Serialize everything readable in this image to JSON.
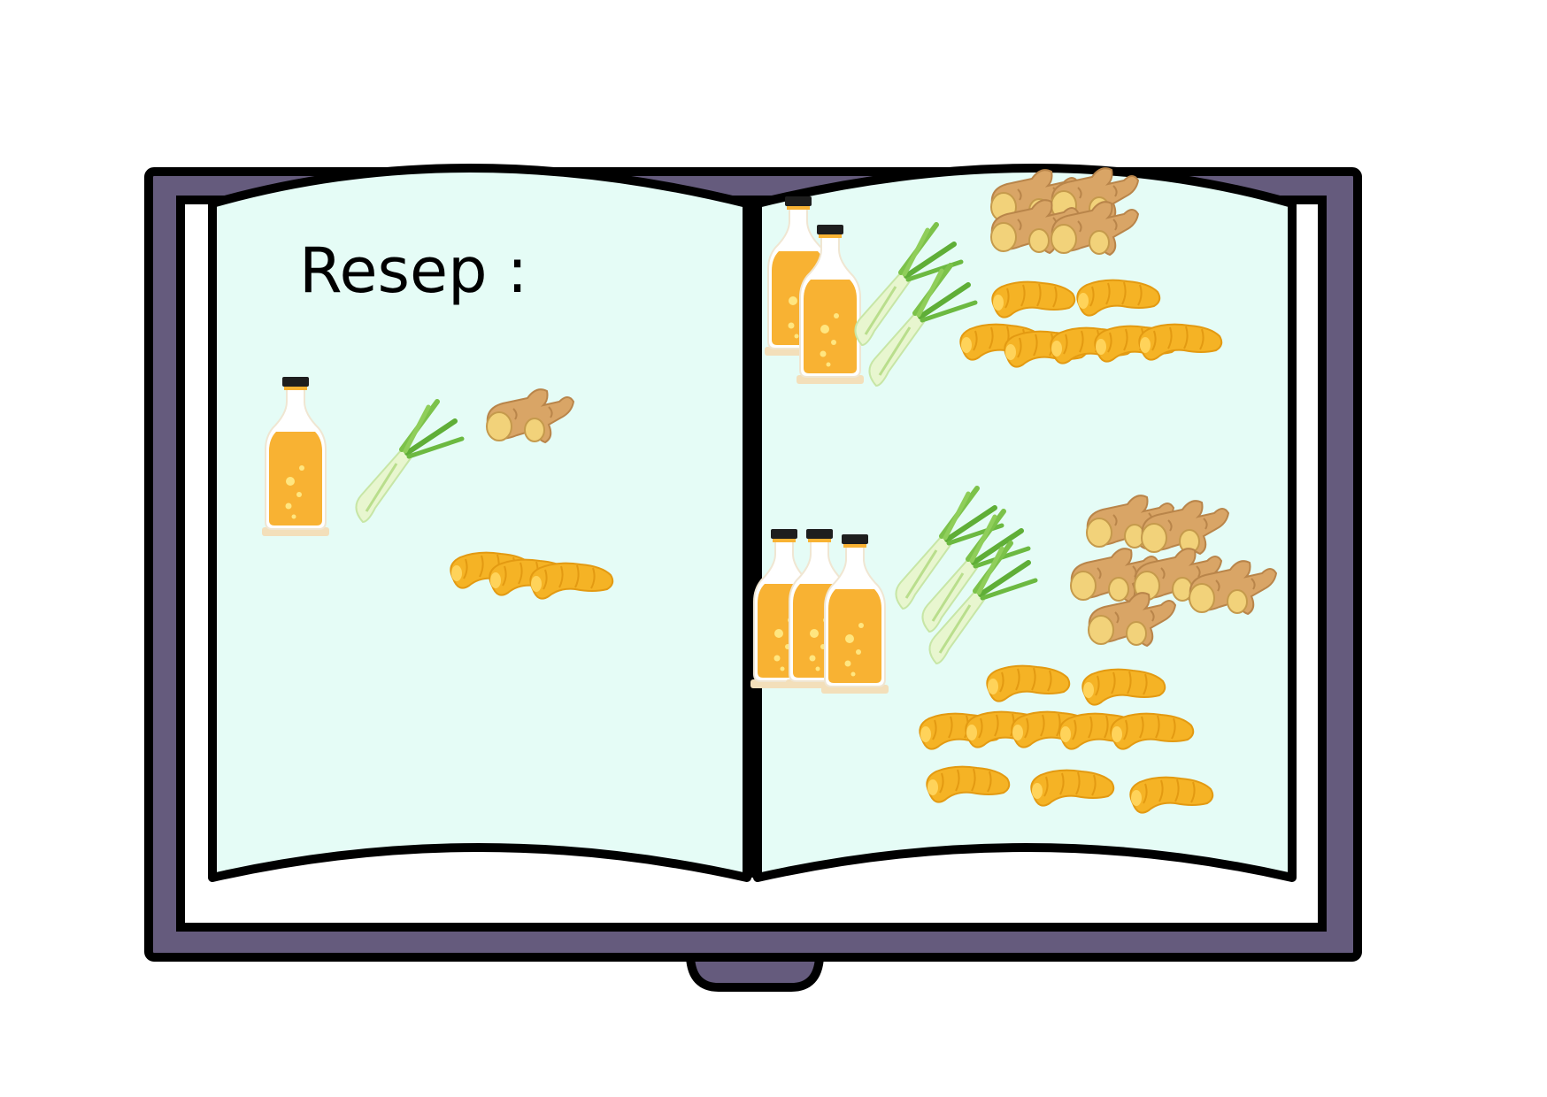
{
  "page": {
    "title": "Resep :"
  },
  "colors": {
    "cover": "#655b7d",
    "page_paper": "#e5fcf6",
    "outline": "#000000",
    "bottle_liquid": "#f8b233",
    "bottle_cap": "#1e1e1e",
    "lemongrass": "#7cc24a",
    "ginger": "#d9a566",
    "turmeric": "#f5b325"
  },
  "left_page": {
    "ingredients": [
      {
        "name": "bottle",
        "count": 1
      },
      {
        "name": "lemongrass",
        "count": 1
      },
      {
        "name": "ginger",
        "count": 1
      },
      {
        "name": "turmeric",
        "count": 3
      }
    ]
  },
  "right_page": {
    "recipes": [
      {
        "ingredients": [
          {
            "name": "bottle",
            "count": 2
          },
          {
            "name": "lemongrass",
            "count": 2
          },
          {
            "name": "ginger",
            "count": 4
          },
          {
            "name": "turmeric",
            "count": 7
          }
        ]
      },
      {
        "ingredients": [
          {
            "name": "bottle",
            "count": 3
          },
          {
            "name": "lemongrass",
            "count": 3
          },
          {
            "name": "ginger",
            "count": 6
          },
          {
            "name": "turmeric",
            "count": 10
          }
        ]
      }
    ]
  }
}
